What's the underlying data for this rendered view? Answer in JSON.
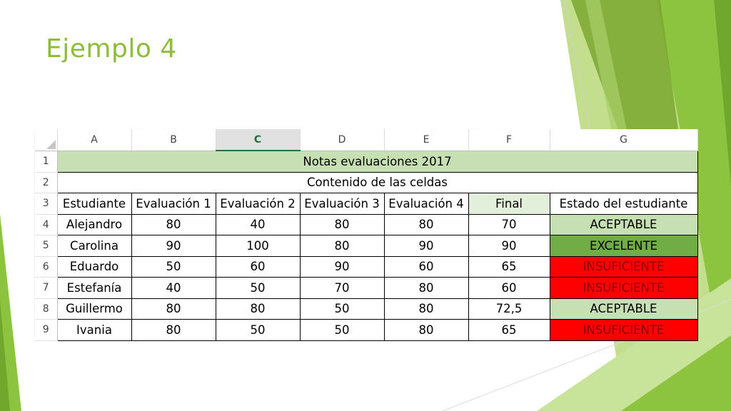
{
  "slide": {
    "title": "Ejemplo 4"
  },
  "colors": {
    "title": "#8ebd3a",
    "aceptable": "#c6e0b4",
    "excelente": "#70ad47",
    "insuficiente": "#ff0000",
    "insuficiente_text": "#8b0000"
  },
  "spreadsheet": {
    "columns": [
      "A",
      "B",
      "C",
      "D",
      "E",
      "F",
      "G"
    ],
    "selected_column": "C",
    "row_numbers": [
      "1",
      "2",
      "3",
      "4",
      "5",
      "6",
      "7",
      "8",
      "9"
    ],
    "banner": "Notas evaluaciones 2017",
    "subtitle": "Contenido de las celdas",
    "headers": [
      "Estudiante",
      "Evaluación 1",
      "Evaluación 2",
      "Evaluación 3",
      "Evaluación 4",
      "Final",
      "Estado del estudiante"
    ],
    "rows": [
      [
        "Alejandro",
        "80",
        "40",
        "80",
        "80",
        "70",
        "ACEPTABLE"
      ],
      [
        "Carolina",
        "90",
        "100",
        "80",
        "90",
        "90",
        "EXCELENTE"
      ],
      [
        "Eduardo",
        "50",
        "60",
        "90",
        "60",
        "65",
        "INSUFICIENTE"
      ],
      [
        "Estefanía",
        "40",
        "50",
        "70",
        "80",
        "60",
        "INSUFICIENTE"
      ],
      [
        "Guillermo",
        "80",
        "80",
        "50",
        "80",
        "72,5",
        "ACEPTABLE"
      ],
      [
        "Ivania",
        "80",
        "50",
        "50",
        "80",
        "65",
        "INSUFICIENTE"
      ]
    ]
  }
}
